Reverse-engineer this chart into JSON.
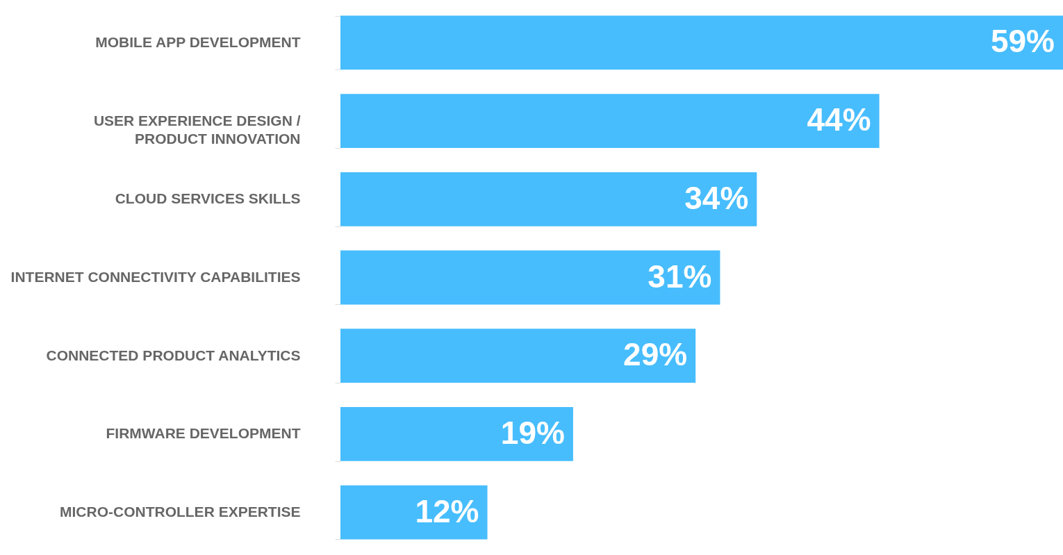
{
  "chart_data": {
    "type": "bar",
    "orientation": "horizontal",
    "categories": [
      "MOBILE APP DEVELOPMENT",
      "USER EXPERIENCE DESIGN /\nPRODUCT INNOVATION",
      "CLOUD SERVICES SKILLS",
      "INTERNET CONNECTIVITY CAPABILITIES",
      "CONNECTED PRODUCT ANALYTICS",
      "FIRMWARE DEVELOPMENT",
      "MICRO-CONTROLLER EXPERTISE"
    ],
    "values": [
      59,
      44,
      34,
      31,
      29,
      19,
      12
    ],
    "value_labels": [
      "59%",
      "44%",
      "34%",
      "31%",
      "29%",
      "19%",
      "12%"
    ],
    "color": "#47bdfe",
    "tick_labels": "y"
  }
}
